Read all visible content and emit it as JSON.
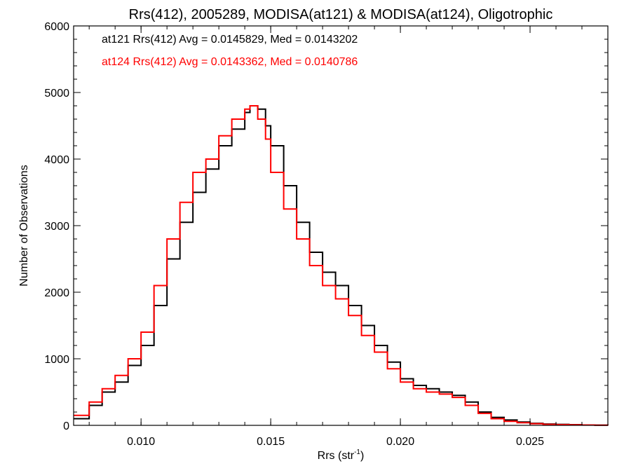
{
  "chart_data": {
    "type": "line",
    "title": "Rrs(412), 2005289, MODISA(at121) & MODISA(at124), Oligotrophic",
    "xlabel": "Rrs (str",
    "xlabel_sup": "-1",
    "xlabel_end": ")",
    "ylabel": "Number of Observations",
    "xlim": [
      0.0074,
      0.028
    ],
    "ylim": [
      0,
      6000
    ],
    "x_ticks": [
      0.01,
      0.015,
      0.02,
      0.025
    ],
    "x_tick_labels": [
      "0.010",
      "0.015",
      "0.020",
      "0.025"
    ],
    "y_ticks": [
      0,
      1000,
      2000,
      3000,
      4000,
      5000,
      6000
    ],
    "y_tick_labels": [
      "0",
      "1000",
      "2000",
      "3000",
      "4000",
      "5000",
      "6000"
    ],
    "step": true,
    "grid": false,
    "series": [
      {
        "name": "at121",
        "color": "#000000",
        "annotation": "at121 Rrs(412) Avg = 0.0145829, Med = 0.0143202",
        "x": [
          0.0074,
          0.008,
          0.0085,
          0.009,
          0.0095,
          0.01,
          0.0105,
          0.011,
          0.0115,
          0.012,
          0.0125,
          0.013,
          0.0135,
          0.014,
          0.0142,
          0.0145,
          0.0148,
          0.015,
          0.0155,
          0.016,
          0.0165,
          0.017,
          0.0175,
          0.018,
          0.0185,
          0.019,
          0.0195,
          0.02,
          0.0205,
          0.021,
          0.0215,
          0.022,
          0.0225,
          0.023,
          0.0235,
          0.024,
          0.0245,
          0.025,
          0.0255,
          0.026,
          0.0265,
          0.027,
          0.0275,
          0.028
        ],
        "y": [
          100,
          300,
          500,
          650,
          900,
          1200,
          1800,
          2500,
          3050,
          3500,
          3850,
          4200,
          4450,
          4700,
          4800,
          4750,
          4500,
          4200,
          3600,
          3050,
          2600,
          2300,
          2100,
          1800,
          1500,
          1200,
          950,
          700,
          600,
          550,
          500,
          450,
          350,
          200,
          120,
          80,
          50,
          30,
          20,
          15,
          10,
          5,
          3,
          2
        ]
      },
      {
        "name": "at124",
        "color": "#ff0000",
        "annotation": "at124 Rrs(412) Avg = 0.0143362, Med = 0.0140786",
        "x": [
          0.0074,
          0.008,
          0.0085,
          0.009,
          0.0095,
          0.01,
          0.0105,
          0.011,
          0.0115,
          0.012,
          0.0125,
          0.013,
          0.0135,
          0.014,
          0.0142,
          0.0145,
          0.0148,
          0.015,
          0.0155,
          0.016,
          0.0165,
          0.017,
          0.0175,
          0.018,
          0.0185,
          0.019,
          0.0195,
          0.02,
          0.0205,
          0.021,
          0.0215,
          0.022,
          0.0225,
          0.023,
          0.0235,
          0.024,
          0.0245,
          0.025,
          0.0255,
          0.026,
          0.0265,
          0.027,
          0.0275,
          0.028
        ],
        "y": [
          150,
          350,
          550,
          750,
          1000,
          1400,
          2100,
          2800,
          3350,
          3800,
          4000,
          4350,
          4600,
          4750,
          4800,
          4600,
          4300,
          3800,
          3250,
          2800,
          2400,
          2100,
          1900,
          1650,
          1350,
          1100,
          850,
          650,
          550,
          500,
          470,
          420,
          300,
          180,
          100,
          60,
          40,
          25,
          15,
          10,
          8,
          5,
          3,
          2
        ]
      }
    ]
  }
}
